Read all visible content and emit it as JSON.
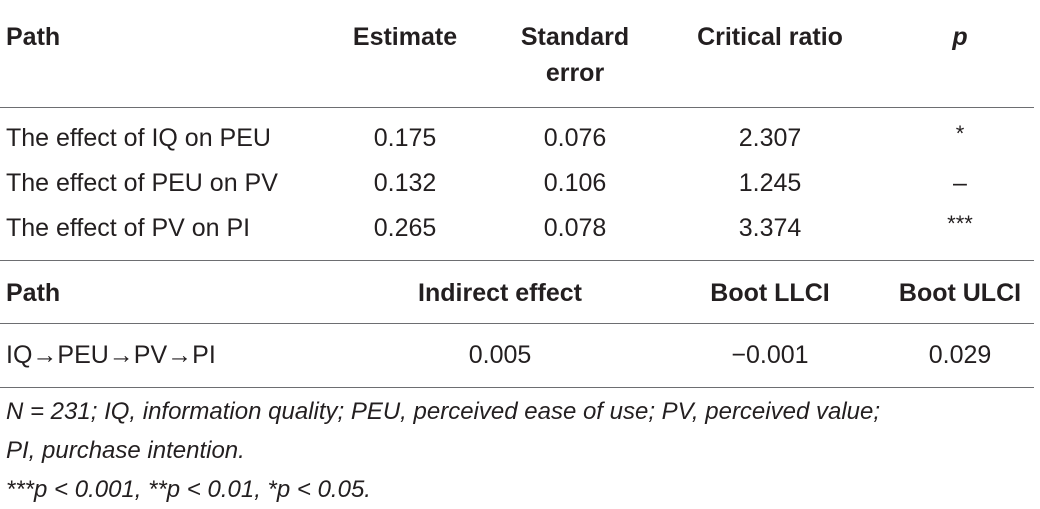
{
  "table1": {
    "headers": {
      "path": "Path",
      "estimate": "Estimate",
      "se_line1": "Standard",
      "se_line2": "error",
      "cr": "Critical ratio",
      "p": "p"
    },
    "rows": [
      {
        "path": "The effect of IQ on PEU",
        "estimate": "0.175",
        "se": "0.076",
        "cr": "2.307",
        "p": "*"
      },
      {
        "path": "The effect of PEU on PV",
        "estimate": "0.132",
        "se": "0.106",
        "cr": "1.245",
        "p": "–"
      },
      {
        "path": "The effect of PV on PI",
        "estimate": "0.265",
        "se": "0.078",
        "cr": "3.374",
        "p": "***"
      }
    ]
  },
  "table2": {
    "headers": {
      "path": "Path",
      "indirect": "Indirect effect",
      "llci": "Boot LLCI",
      "ulci": "Boot ULCI"
    },
    "rows": [
      {
        "path": "IQ→PEU→PV→PI",
        "indirect": "0.005",
        "llci": "−0.001",
        "ulci": "0.029"
      }
    ]
  },
  "notes": {
    "line1": "N = 231; IQ, information quality; PEU, perceived ease of use; PV, perceived value;",
    "line2": "PI, purchase intention.",
    "line3": "***p < 0.001, **p < 0.01, *p < 0.05."
  }
}
